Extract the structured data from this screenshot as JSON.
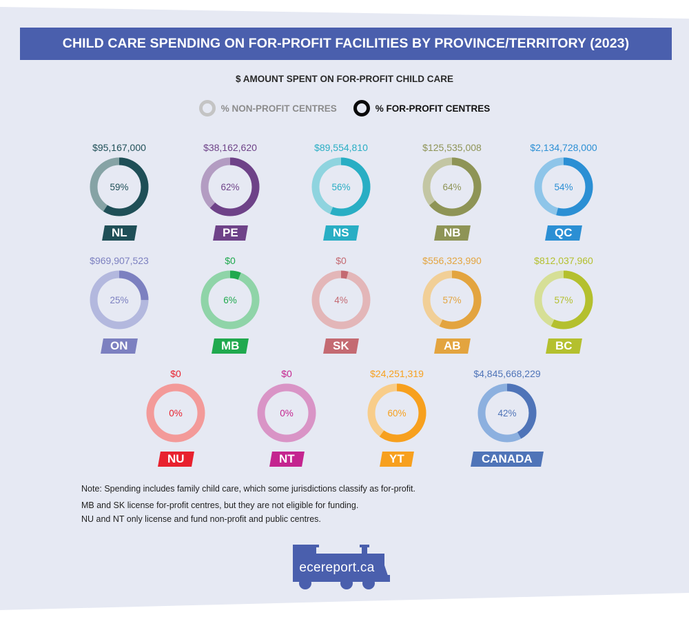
{
  "header": {
    "title": "CHILD CARE SPENDING ON FOR-PROFIT FACILITIES BY PROVINCE/TERRITORY (2023)"
  },
  "subtitle": "$ AMOUNT SPENT ON FOR-PROFIT CHILD CARE",
  "legend": {
    "non_profit": "% NON-PROFIT CENTRES",
    "for_profit": "% FOR-PROFIT CENTRES"
  },
  "regions": [
    {
      "code": "NL",
      "amount": "$95,167,000",
      "pct_label": "59%",
      "pct": 59,
      "color": "#1f4f57",
      "light": "#86a3a5"
    },
    {
      "code": "PE",
      "amount": "$38,162,620",
      "pct_label": "62%",
      "pct": 62,
      "color": "#6e4288",
      "light": "#b39cc2"
    },
    {
      "code": "NS",
      "amount": "$89,554,810",
      "pct_label": "56%",
      "pct": 56,
      "color": "#29aec4",
      "light": "#8fd4df"
    },
    {
      "code": "NB",
      "amount": "$125,535,008",
      "pct_label": "64%",
      "pct": 64,
      "color": "#8e9456",
      "light": "#c3c6a3"
    },
    {
      "code": "QC",
      "amount": "$2,134,728,000",
      "pct_label": "54%",
      "pct": 54,
      "color": "#2b8fd4",
      "light": "#8ec5e9"
    },
    {
      "code": "ON",
      "amount": "$969,907,523",
      "pct_label": "25%",
      "pct": 25,
      "color": "#7c80c0",
      "light": "#b3b8de"
    },
    {
      "code": "MB",
      "amount": "$0",
      "pct_label": "6%",
      "pct": 6,
      "color": "#20a94e",
      "light": "#8fd4a8"
    },
    {
      "code": "SK",
      "amount": "$0",
      "pct_label": "4%",
      "pct": 4,
      "color": "#c46a72",
      "light": "#e3b6b8"
    },
    {
      "code": "AB",
      "amount": "$556,323,990",
      "pct_label": "57%",
      "pct": 57,
      "color": "#e3a43f",
      "light": "#f1cf97"
    },
    {
      "code": "BC",
      "amount": "$812,037,960",
      "pct_label": "57%",
      "pct": 57,
      "color": "#b4c02e",
      "light": "#d6df96"
    },
    {
      "code": "NU",
      "amount": "$0",
      "pct_label": "0%",
      "pct": 0,
      "color": "#e8212e",
      "light": "#f39a99"
    },
    {
      "code": "NT",
      "amount": "$0",
      "pct_label": "0%",
      "pct": 0,
      "color": "#c4258f",
      "light": "#d994c6"
    },
    {
      "code": "YT",
      "amount": "$24,251,319",
      "pct_label": "60%",
      "pct": 60,
      "color": "#f7a01e",
      "light": "#f8cd8a"
    },
    {
      "code": "CANADA",
      "amount": "$4,845,668,229",
      "pct_label": "42%",
      "pct": 42,
      "color": "#4f74b8",
      "light": "#8cb0df"
    }
  ],
  "notes": [
    "Note: Spending includes family child care, which some jurisdictions classify as for-profit.",
    "MB and SK license for-profit centres, but they are not eligible for funding.",
    "NU and NT only license and fund non-profit and public centres."
  ],
  "logo": {
    "text": "ecereport.ca",
    "color": "#4a5fad"
  },
  "colors": {
    "background": "#e6e9f3",
    "header": "#4a5fad"
  },
  "chart_data": {
    "type": "pie",
    "variant": "donut-small-multiples",
    "title": "CHILD CARE SPENDING ON FOR-PROFIT FACILITIES BY PROVINCE/TERRITORY (2023)",
    "subtitle": "$ AMOUNT SPENT ON FOR-PROFIT CHILD CARE",
    "legend": [
      "% NON-PROFIT CENTRES",
      "% FOR-PROFIT CENTRES"
    ],
    "categories": [
      "NL",
      "PE",
      "NS",
      "NB",
      "QC",
      "ON",
      "MB",
      "SK",
      "AB",
      "BC",
      "NU",
      "NT",
      "YT",
      "CANADA"
    ],
    "series": [
      {
        "name": "% for-profit centres",
        "values": [
          59,
          62,
          56,
          64,
          54,
          25,
          6,
          4,
          57,
          57,
          0,
          0,
          60,
          42
        ]
      },
      {
        "name": "% non-profit centres",
        "values": [
          41,
          38,
          44,
          36,
          46,
          75,
          94,
          96,
          43,
          43,
          100,
          100,
          40,
          58
        ]
      },
      {
        "name": "$ spent on for-profit child care",
        "values": [
          95167000,
          38162620,
          89554810,
          125535008,
          2134728000,
          969907523,
          0,
          0,
          556323990,
          812037960,
          0,
          0,
          24251319,
          4845668229
        ]
      }
    ],
    "annotations": [
      "Note: Spending includes family child care, which some jurisdictions classify as for-profit.",
      "MB and SK license for-profit centres, but they are not eligible for funding.",
      "NU and NT only license and fund non-profit and public centres."
    ]
  }
}
